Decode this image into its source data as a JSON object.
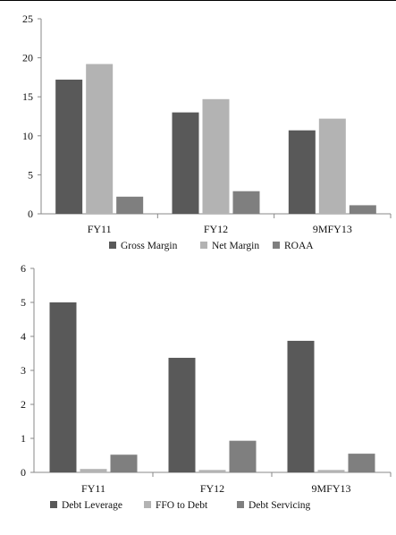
{
  "colors": {
    "gross_margin": "#595959",
    "net_margin": "#b3b3b3",
    "roaa": "#7f7f7f",
    "debt_leverage": "#595959",
    "ffo_to_debt": "#b3b3b3",
    "debt_servicing": "#7f7f7f"
  },
  "chart_data": [
    {
      "type": "bar",
      "categories": [
        "FY11",
        "FY12",
        "9MFY13"
      ],
      "series": [
        {
          "name": "Gross Margin",
          "values": [
            17.2,
            13.0,
            10.7
          ]
        },
        {
          "name": "Net Margin",
          "values": [
            19.2,
            14.7,
            12.2
          ]
        },
        {
          "name": "ROAA",
          "values": [
            2.2,
            2.9,
            1.1
          ]
        }
      ],
      "yticks": [
        "0",
        "5",
        "10",
        "15",
        "20",
        "25"
      ],
      "ylim": [
        0,
        25
      ],
      "grid": false,
      "legend": "bottom"
    },
    {
      "type": "bar",
      "categories": [
        "FY11",
        "FY12",
        "9MFY13"
      ],
      "series": [
        {
          "name": "Debt Leverage",
          "values": [
            5.0,
            3.37,
            3.87
          ]
        },
        {
          "name": "FFO to Debt",
          "values": [
            0.1,
            0.07,
            0.07
          ]
        },
        {
          "name": "Debt Servicing",
          "values": [
            0.52,
            0.93,
            0.55
          ]
        }
      ],
      "yticks": [
        "0",
        "1",
        "2",
        "3",
        "4",
        "5",
        "6"
      ],
      "ylim": [
        0,
        6
      ],
      "grid": false,
      "legend": "bottom"
    }
  ]
}
